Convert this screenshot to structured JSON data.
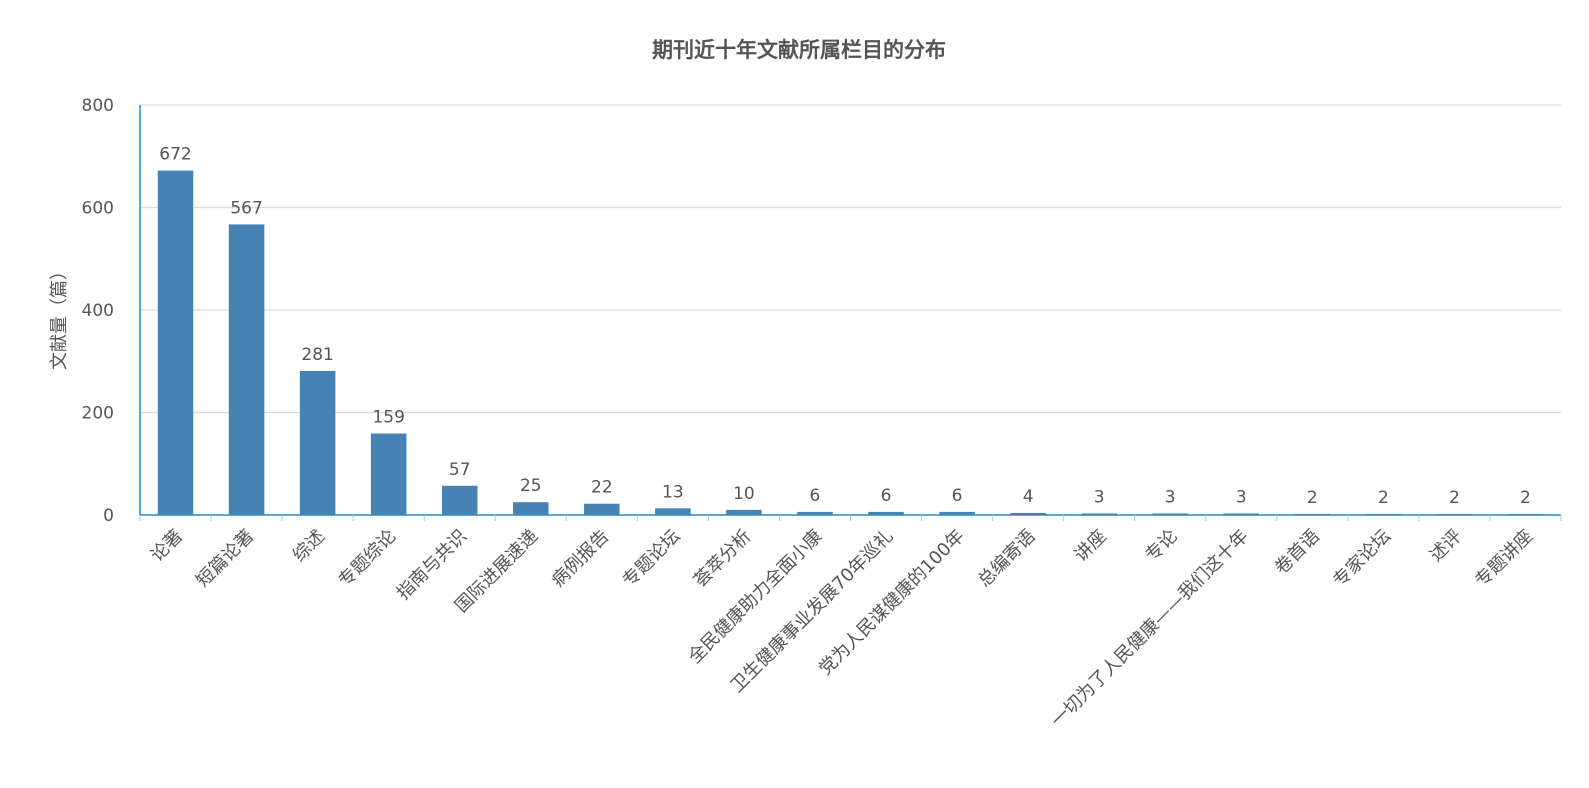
{
  "chart_data": {
    "type": "bar",
    "title": "期刊近十年文献所属栏目的分布",
    "ylabel": "文献量（篇）",
    "xlabel": "",
    "ylim": [
      0,
      800
    ],
    "yticks": [
      0,
      200,
      400,
      600,
      800
    ],
    "grid": true,
    "categories": [
      "论著",
      "短篇论著",
      "综述",
      "专题综论",
      "指南与共识",
      "国际进展速递",
      "病例报告",
      "专题论坛",
      "荟萃分析",
      "全民健康助力全面小康",
      "卫生健康事业发展70年巡礼",
      "党为人民谋健康的100年",
      "总编寄语",
      "讲座",
      "专论",
      "一切为了人民健康——我们这十年",
      "卷首语",
      "专家论坛",
      "述评",
      "专题讲座"
    ],
    "values": [
      672,
      567,
      281,
      159,
      57,
      25,
      22,
      13,
      10,
      6,
      6,
      6,
      4,
      3,
      3,
      3,
      2,
      2,
      2,
      2
    ],
    "bar_color": "#4682b4",
    "axis_color": "#1f8fc8",
    "grid_color": "#dcdcdc"
  }
}
